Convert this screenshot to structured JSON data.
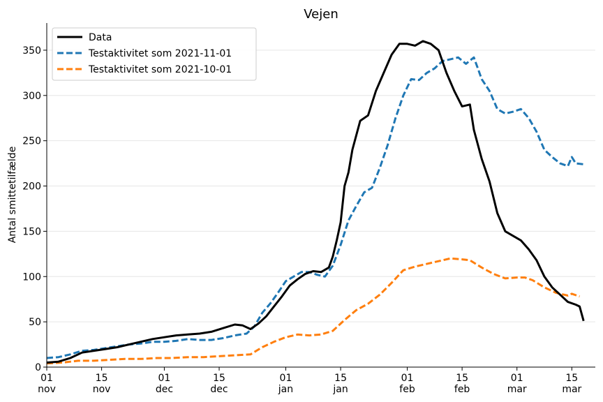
{
  "chart_data": {
    "type": "line",
    "title": "Vejen",
    "xlabel": "",
    "ylabel": "Antal smittetilfælde",
    "x_start": "2021-11-01",
    "ylim": [
      0,
      380
    ],
    "yticks": [
      0,
      50,
      100,
      150,
      200,
      250,
      300,
      350
    ],
    "grid": "horizontal",
    "legend_placement": "top-left",
    "xticks": [
      {
        "date": "2021-11-01",
        "day": "01",
        "month": "nov"
      },
      {
        "date": "2021-11-15",
        "day": "15",
        "month": "nov"
      },
      {
        "date": "2021-12-01",
        "day": "01",
        "month": "dec"
      },
      {
        "date": "2021-12-15",
        "day": "15",
        "month": "dec"
      },
      {
        "date": "2022-01-01",
        "day": "01",
        "month": "jan"
      },
      {
        "date": "2022-01-15",
        "day": "15",
        "month": "jan"
      },
      {
        "date": "2022-02-01",
        "day": "01",
        "month": "feb"
      },
      {
        "date": "2022-02-15",
        "day": "15",
        "month": "feb"
      },
      {
        "date": "2022-03-01",
        "day": "01",
        "month": "mar"
      },
      {
        "date": "2022-03-15",
        "day": "15",
        "month": "mar"
      }
    ],
    "series": [
      {
        "name": "Data",
        "color": "#000000",
        "style": "solid",
        "points": [
          [
            "2021-11-01",
            5
          ],
          [
            "2021-11-04",
            6
          ],
          [
            "2021-11-07",
            10
          ],
          [
            "2021-11-10",
            16
          ],
          [
            "2021-11-13",
            18
          ],
          [
            "2021-11-16",
            20
          ],
          [
            "2021-11-19",
            22
          ],
          [
            "2021-11-22",
            25
          ],
          [
            "2021-11-25",
            28
          ],
          [
            "2021-11-28",
            31
          ],
          [
            "2021-12-01",
            33
          ],
          [
            "2021-12-04",
            35
          ],
          [
            "2021-12-07",
            36
          ],
          [
            "2021-12-10",
            37
          ],
          [
            "2021-12-13",
            39
          ],
          [
            "2021-12-16",
            43
          ],
          [
            "2021-12-19",
            47
          ],
          [
            "2021-12-21",
            46
          ],
          [
            "2021-12-23",
            42
          ],
          [
            "2021-12-25",
            48
          ],
          [
            "2021-12-27",
            56
          ],
          [
            "2021-12-29",
            67
          ],
          [
            "2021-12-31",
            78
          ],
          [
            "2022-01-02",
            90
          ],
          [
            "2022-01-04",
            97
          ],
          [
            "2022-01-06",
            103
          ],
          [
            "2022-01-08",
            106
          ],
          [
            "2022-01-10",
            105
          ],
          [
            "2022-01-12",
            110
          ],
          [
            "2022-01-13",
            122
          ],
          [
            "2022-01-14",
            140
          ],
          [
            "2022-01-15",
            160
          ],
          [
            "2022-01-16",
            200
          ],
          [
            "2022-01-17",
            215
          ],
          [
            "2022-01-18",
            240
          ],
          [
            "2022-01-20",
            272
          ],
          [
            "2022-01-22",
            278
          ],
          [
            "2022-01-24",
            305
          ],
          [
            "2022-01-26",
            325
          ],
          [
            "2022-01-28",
            345
          ],
          [
            "2022-01-30",
            357
          ],
          [
            "2022-02-01",
            357
          ],
          [
            "2022-02-03",
            355
          ],
          [
            "2022-02-05",
            360
          ],
          [
            "2022-02-07",
            357
          ],
          [
            "2022-02-09",
            350
          ],
          [
            "2022-02-11",
            325
          ],
          [
            "2022-02-13",
            305
          ],
          [
            "2022-02-15",
            288
          ],
          [
            "2022-02-17",
            290
          ],
          [
            "2022-02-18",
            262
          ],
          [
            "2022-02-20",
            230
          ],
          [
            "2022-02-22",
            205
          ],
          [
            "2022-02-24",
            170
          ],
          [
            "2022-02-26",
            150
          ],
          [
            "2022-02-28",
            145
          ],
          [
            "2022-03-02",
            140
          ],
          [
            "2022-03-04",
            130
          ],
          [
            "2022-03-06",
            118
          ],
          [
            "2022-03-08",
            100
          ],
          [
            "2022-03-10",
            88
          ],
          [
            "2022-03-12",
            80
          ],
          [
            "2022-03-14",
            72
          ],
          [
            "2022-03-16",
            69
          ],
          [
            "2022-03-17",
            67
          ],
          [
            "2022-03-18",
            51
          ]
        ]
      },
      {
        "name": "Testaktivitet som 2021-11-01",
        "color": "#1f77b4",
        "style": "dashed",
        "points": [
          [
            "2021-11-01",
            10
          ],
          [
            "2021-11-04",
            11
          ],
          [
            "2021-11-07",
            14
          ],
          [
            "2021-11-10",
            18
          ],
          [
            "2021-11-13",
            19
          ],
          [
            "2021-11-16",
            21
          ],
          [
            "2021-11-19",
            23
          ],
          [
            "2021-11-22",
            25
          ],
          [
            "2021-11-25",
            26
          ],
          [
            "2021-11-28",
            28
          ],
          [
            "2021-12-01",
            28
          ],
          [
            "2021-12-04",
            29
          ],
          [
            "2021-12-07",
            31
          ],
          [
            "2021-12-10",
            30
          ],
          [
            "2021-12-13",
            30
          ],
          [
            "2021-12-16",
            32
          ],
          [
            "2021-12-19",
            35
          ],
          [
            "2021-12-22",
            37
          ],
          [
            "2021-12-24",
            45
          ],
          [
            "2021-12-26",
            60
          ],
          [
            "2021-12-28",
            70
          ],
          [
            "2021-12-30",
            82
          ],
          [
            "2022-01-01",
            95
          ],
          [
            "2022-01-03",
            100
          ],
          [
            "2022-01-05",
            105
          ],
          [
            "2022-01-07",
            105
          ],
          [
            "2022-01-09",
            102
          ],
          [
            "2022-01-11",
            100
          ],
          [
            "2022-01-13",
            112
          ],
          [
            "2022-01-15",
            135
          ],
          [
            "2022-01-17",
            162
          ],
          [
            "2022-01-19",
            178
          ],
          [
            "2022-01-21",
            193
          ],
          [
            "2022-01-23",
            198
          ],
          [
            "2022-01-25",
            220
          ],
          [
            "2022-01-27",
            245
          ],
          [
            "2022-01-29",
            275
          ],
          [
            "2022-01-31",
            300
          ],
          [
            "2022-02-02",
            318
          ],
          [
            "2022-02-04",
            317
          ],
          [
            "2022-02-06",
            325
          ],
          [
            "2022-02-08",
            330
          ],
          [
            "2022-02-10",
            338
          ],
          [
            "2022-02-12",
            340
          ],
          [
            "2022-02-14",
            342
          ],
          [
            "2022-02-16",
            335
          ],
          [
            "2022-02-18",
            342
          ],
          [
            "2022-02-20",
            318
          ],
          [
            "2022-02-22",
            305
          ],
          [
            "2022-02-24",
            285
          ],
          [
            "2022-02-26",
            280
          ],
          [
            "2022-02-28",
            282
          ],
          [
            "2022-03-02",
            285
          ],
          [
            "2022-03-04",
            275
          ],
          [
            "2022-03-06",
            260
          ],
          [
            "2022-03-08",
            240
          ],
          [
            "2022-03-10",
            232
          ],
          [
            "2022-03-12",
            225
          ],
          [
            "2022-03-14",
            222
          ],
          [
            "2022-03-15",
            232
          ],
          [
            "2022-03-16",
            225
          ],
          [
            "2022-03-18",
            224
          ]
        ]
      },
      {
        "name": "Testaktivitet som 2021-10-01",
        "color": "#ff7f0e",
        "style": "dashed",
        "points": [
          [
            "2021-11-01",
            4
          ],
          [
            "2021-11-05",
            5
          ],
          [
            "2021-11-09",
            7
          ],
          [
            "2021-11-13",
            7
          ],
          [
            "2021-11-17",
            8
          ],
          [
            "2021-11-21",
            9
          ],
          [
            "2021-11-25",
            9
          ],
          [
            "2021-11-29",
            10
          ],
          [
            "2021-12-03",
            10
          ],
          [
            "2021-12-07",
            11
          ],
          [
            "2021-12-11",
            11
          ],
          [
            "2021-12-15",
            12
          ],
          [
            "2021-12-19",
            13
          ],
          [
            "2021-12-23",
            14
          ],
          [
            "2021-12-26",
            22
          ],
          [
            "2021-12-29",
            28
          ],
          [
            "2022-01-01",
            33
          ],
          [
            "2022-01-04",
            36
          ],
          [
            "2022-01-07",
            35
          ],
          [
            "2022-01-10",
            36
          ],
          [
            "2022-01-13",
            40
          ],
          [
            "2022-01-16",
            52
          ],
          [
            "2022-01-19",
            63
          ],
          [
            "2022-01-22",
            70
          ],
          [
            "2022-01-25",
            80
          ],
          [
            "2022-01-28",
            93
          ],
          [
            "2022-01-31",
            107
          ],
          [
            "2022-02-03",
            111
          ],
          [
            "2022-02-06",
            114
          ],
          [
            "2022-02-09",
            117
          ],
          [
            "2022-02-12",
            120
          ],
          [
            "2022-02-15",
            119
          ],
          [
            "2022-02-17",
            118
          ],
          [
            "2022-02-20",
            110
          ],
          [
            "2022-02-23",
            103
          ],
          [
            "2022-02-26",
            98
          ],
          [
            "2022-03-01",
            99
          ],
          [
            "2022-03-03",
            99
          ],
          [
            "2022-03-05",
            96
          ],
          [
            "2022-03-08",
            88
          ],
          [
            "2022-03-11",
            82
          ],
          [
            "2022-03-14",
            79
          ],
          [
            "2022-03-15",
            81
          ],
          [
            "2022-03-17",
            78
          ]
        ]
      }
    ]
  }
}
